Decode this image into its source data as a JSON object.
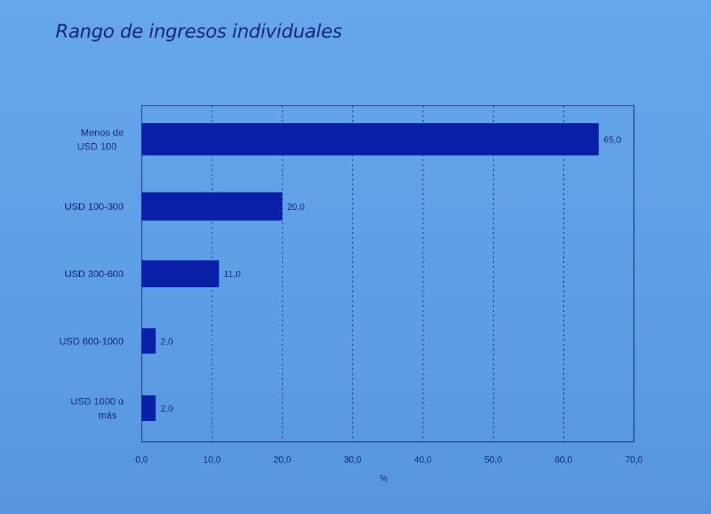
{
  "chart_data": {
    "type": "bar",
    "orientation": "horizontal",
    "title": "Rango de ingresos individuales",
    "categories": [
      [
        "Menos de",
        "USD 100"
      ],
      [
        "USD 100-300"
      ],
      [
        "USD 300-600"
      ],
      [
        "USD 600-1000"
      ],
      [
        "USD 1000 o",
        "más"
      ]
    ],
    "values": [
      65.0,
      20.0,
      11.0,
      2.0,
      2.0
    ],
    "value_labels": [
      "65,0",
      "20,0",
      "11,0",
      "2,0",
      "2,0"
    ],
    "xlabel": "%",
    "xlim": [
      0,
      70
    ],
    "xticks": [
      0,
      10,
      20,
      30,
      40,
      50,
      60,
      70
    ],
    "xtick_labels": [
      "0,0",
      "10,0",
      "20,0",
      "30,0",
      "40,0",
      "50,0",
      "60,0",
      "70,0"
    ],
    "grid": "vertical-dashed",
    "colors": {
      "bar": "#0a1fa8",
      "text": "#14247a",
      "axis": "#1c2a70"
    }
  }
}
